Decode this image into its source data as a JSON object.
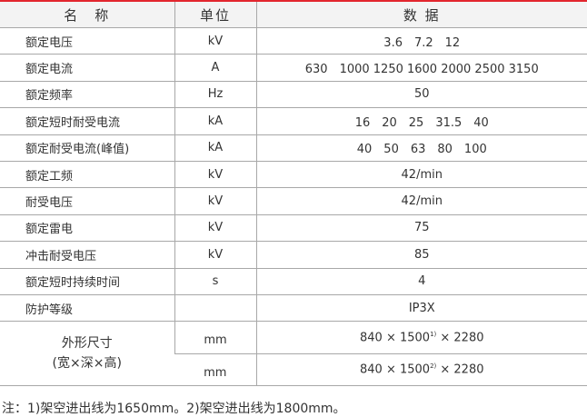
{
  "header": {
    "name": "名　称",
    "unit": "单位",
    "data": "数 据"
  },
  "rows": [
    {
      "name": "额定电压",
      "unit": "kV",
      "value": "3.6　7.2　12"
    },
    {
      "name": "额定电流",
      "unit": "A",
      "value": "630　1000  1250  1600  2000  2500  3150"
    },
    {
      "name": "额定频率",
      "unit": "Hz",
      "value": "50"
    },
    {
      "name": "额定短时耐受电流",
      "unit": "kA",
      "value": "16　20　25　31.5　40"
    },
    {
      "name": "额定耐受电流(峰值)",
      "unit": "kA",
      "value": "40　50　63　80　100"
    },
    {
      "name": "额定工频",
      "unit": "kV",
      "value": "42/min"
    },
    {
      "name": "耐受电压",
      "unit": "kV",
      "value": "42/min"
    },
    {
      "name": "额定雷电",
      "unit": "kV",
      "value": "75"
    },
    {
      "name": "冲击耐受电压",
      "unit": "kV",
      "value": "85"
    },
    {
      "name": "额定短时持续时间",
      "unit": "s",
      "value": "4"
    },
    {
      "name": "防护等级",
      "unit": "",
      "value": "IP3X"
    }
  ],
  "dimensions": {
    "name_line1": "外形尺寸",
    "name_line2": "(宽×深×高)",
    "rows": [
      {
        "unit": "mm",
        "pre": "840 × 1500",
        "sup": "1)",
        "post": " × 2280"
      },
      {
        "unit": "mm",
        "pre": "840 × 1500",
        "sup": "2)",
        "post": " × 2280"
      }
    ]
  },
  "note": "注：1)架空进出线为1650mm。2)架空进出线为1800mm。",
  "colors": {
    "accent": "#e2262e"
  }
}
